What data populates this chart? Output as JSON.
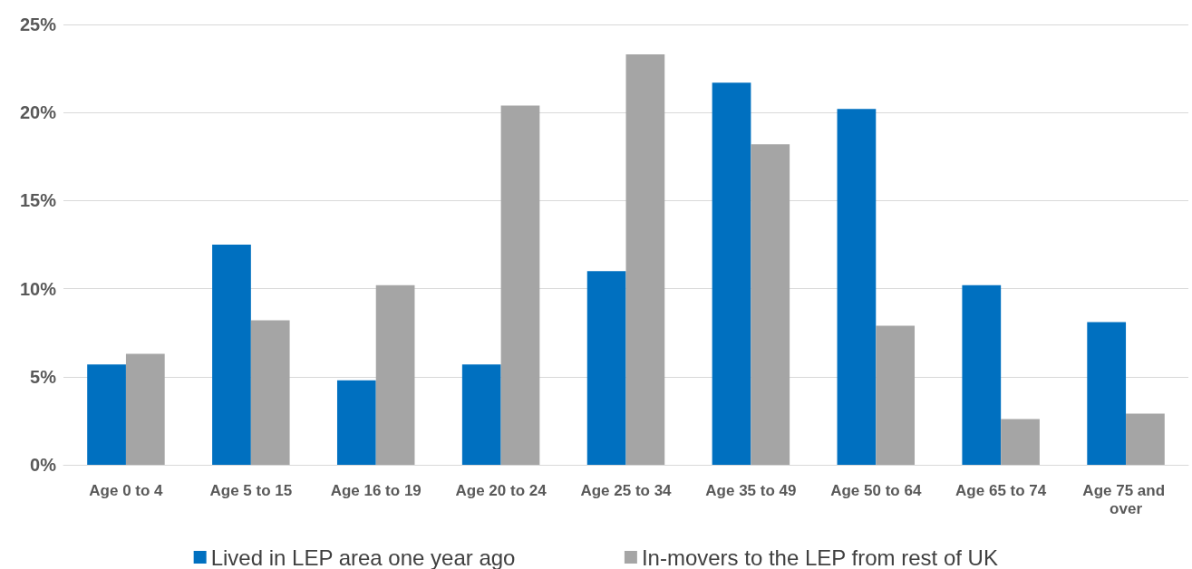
{
  "chart_data": {
    "type": "bar",
    "categories": [
      "Age 0 to 4",
      "Age 5 to 15",
      "Age 16 to 19",
      "Age 20 to 24",
      "Age 25 to 34",
      "Age 35 to 49",
      "Age 50 to 64",
      "Age 65 to 74",
      "Age 75 and over"
    ],
    "series": [
      {
        "name": "Lived in LEP area one year ago",
        "color": "#0070c0",
        "values": [
          5.7,
          12.5,
          4.8,
          5.7,
          11.0,
          21.7,
          20.2,
          10.2,
          8.1
        ]
      },
      {
        "name": "In-movers to the LEP from rest of UK",
        "color": "#a5a5a5",
        "values": [
          6.3,
          8.2,
          10.2,
          20.4,
          23.3,
          18.2,
          7.9,
          2.6,
          2.9
        ]
      }
    ],
    "ylim": [
      0,
      25
    ],
    "yticks": [
      {
        "value": 0,
        "label": "0%"
      },
      {
        "value": 5,
        "label": "5%"
      },
      {
        "value": 10,
        "label": "10%"
      },
      {
        "value": 15,
        "label": "15%"
      },
      {
        "value": 20,
        "label": "20%"
      },
      {
        "value": 25,
        "label": "25%"
      }
    ],
    "grid": "y",
    "legend": "bottom"
  }
}
